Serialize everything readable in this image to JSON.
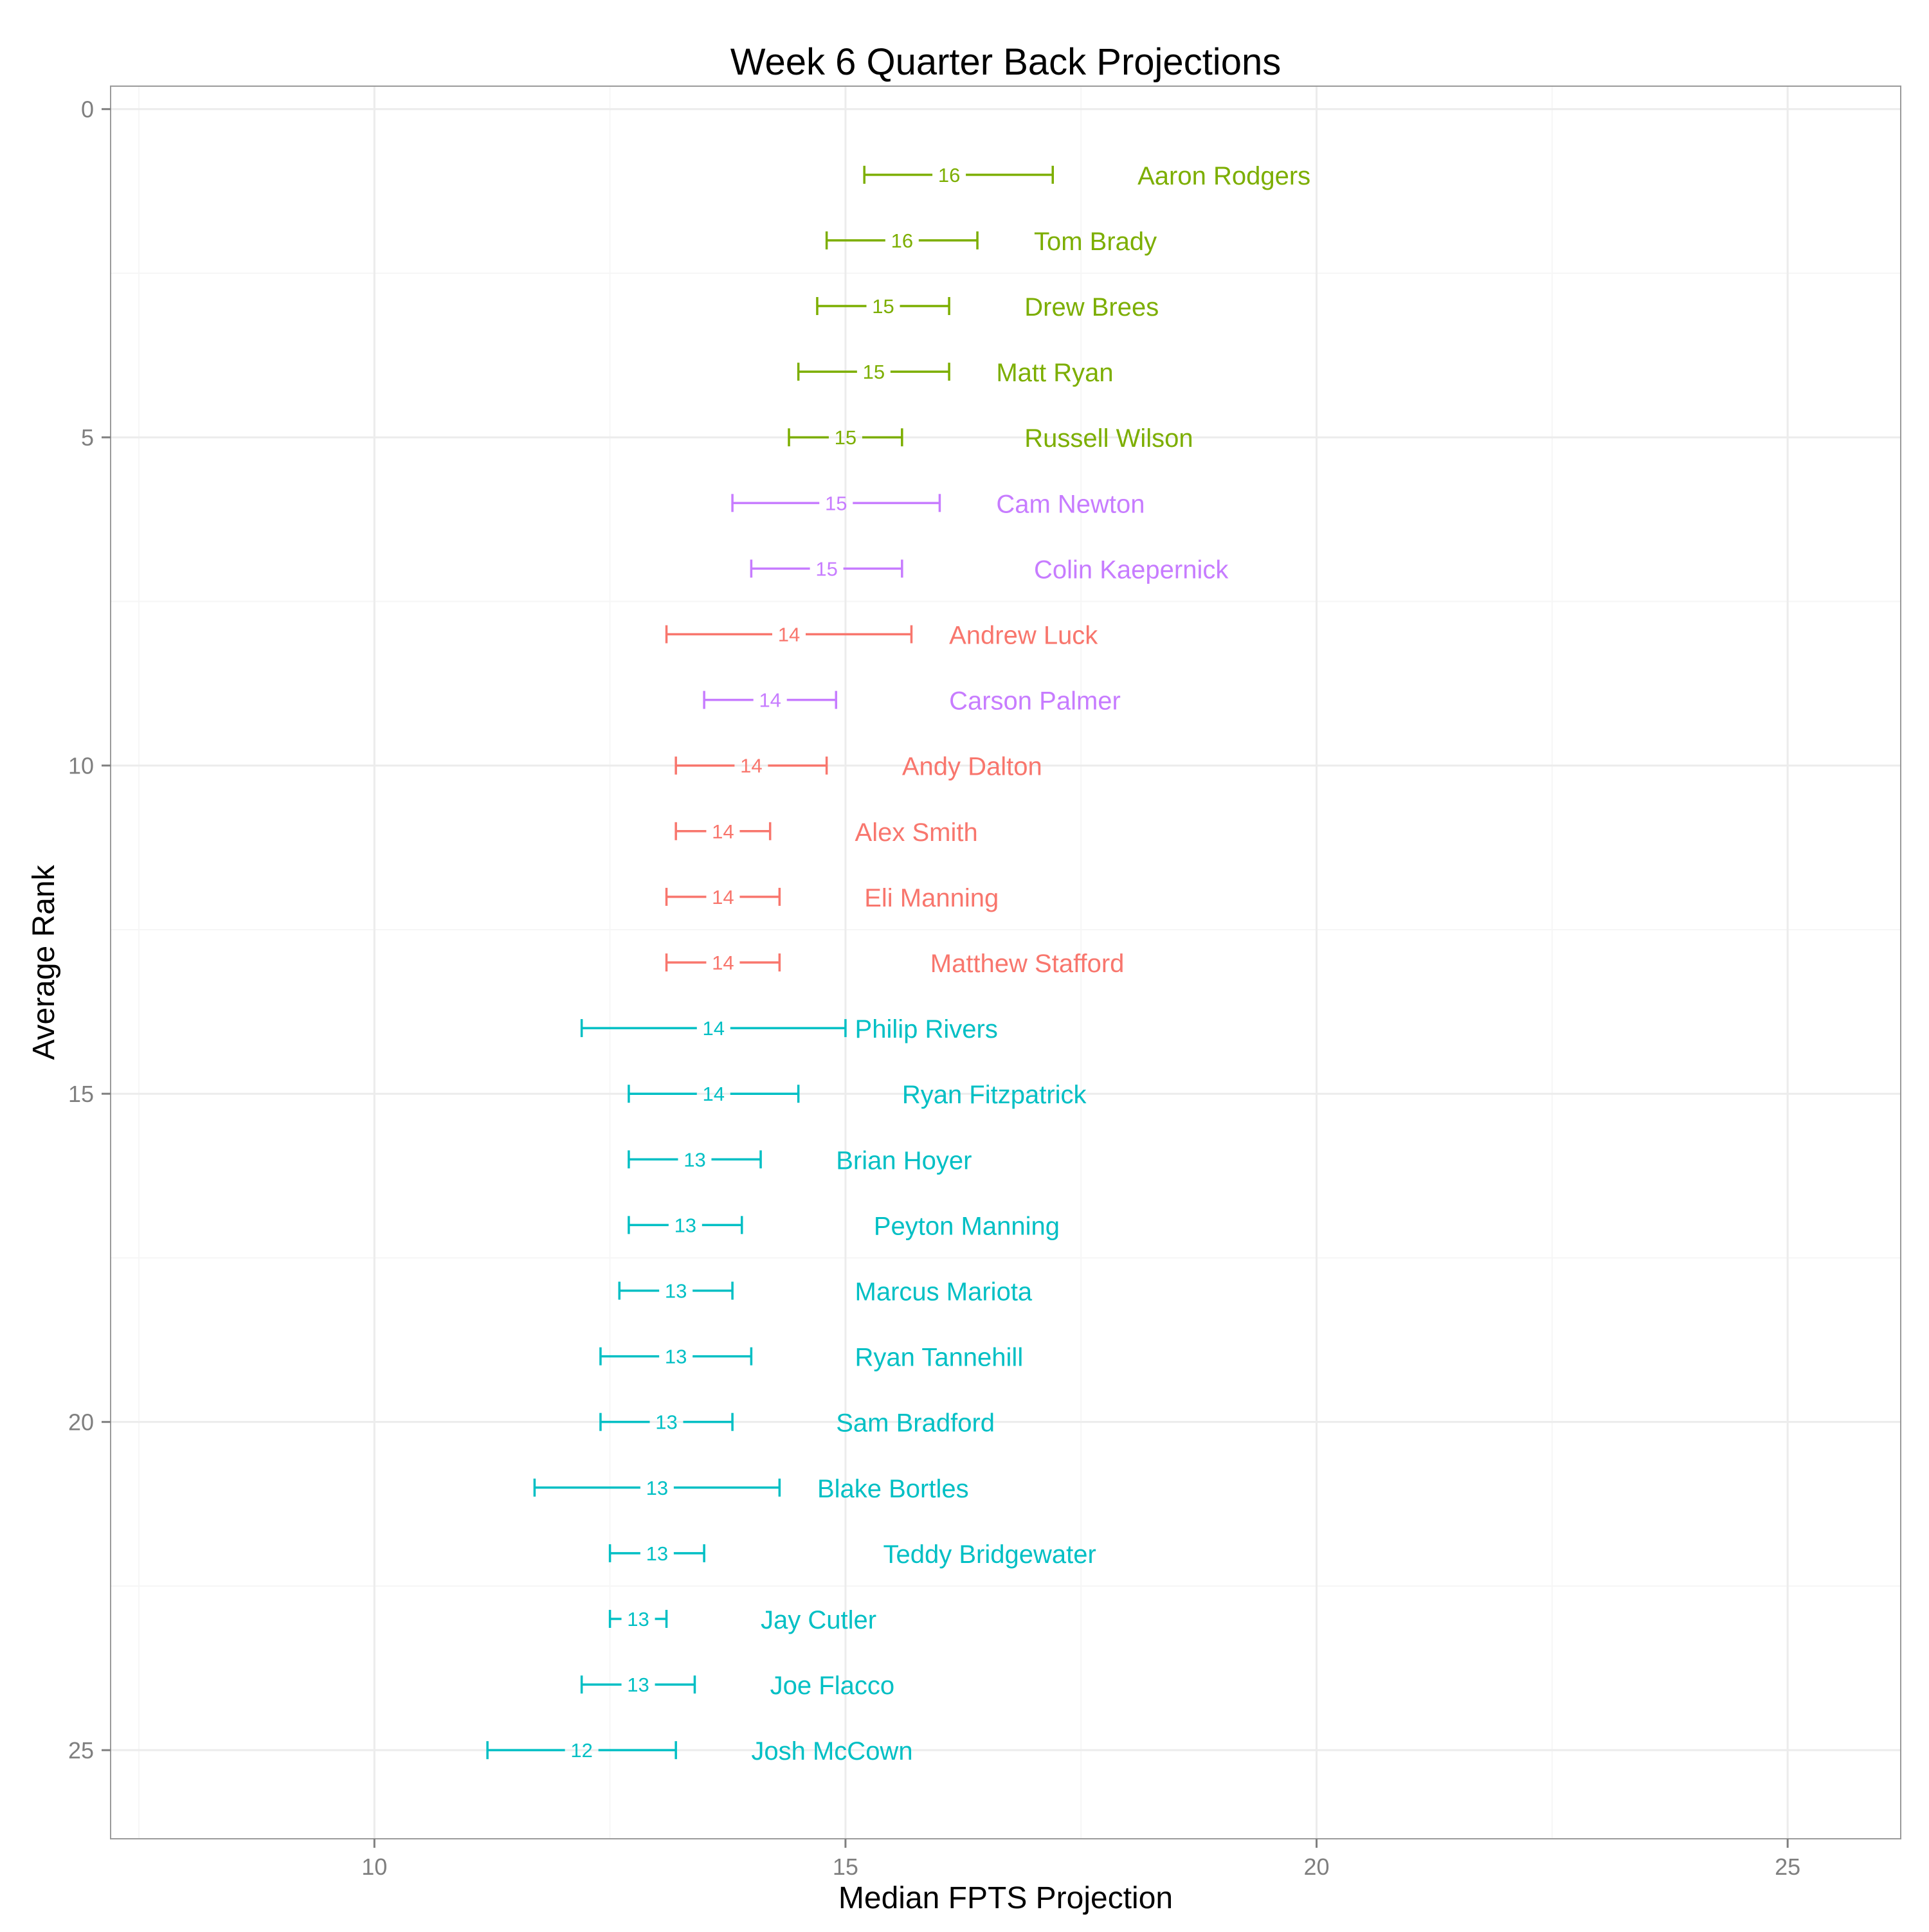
{
  "chart_data": {
    "type": "errorbar",
    "title": "Week 6 Quarter Back Projections",
    "xlabel": "Median FPTS Projection",
    "ylabel": "Average Rank",
    "xlim": [
      7.2,
      26.2
    ],
    "ylim": [
      26.35,
      -0.35
    ],
    "y_reversed": true,
    "x_ticks": [
      10,
      15,
      20,
      25
    ],
    "y_ticks": [
      0,
      5,
      10,
      15,
      20,
      25
    ],
    "grid": true,
    "colors": {
      "tier_green": "#7CAE00",
      "tier_purple": "#C77CFF",
      "tier_red": "#F8766D",
      "tier_teal": "#00BFC4"
    },
    "players": [
      {
        "name": "Aaron Rodgers",
        "rank": 1,
        "low": 15.2,
        "high": 17.2,
        "median_label": "16",
        "median": 16.1,
        "color": "#7CAE00",
        "name_x": 18.1
      },
      {
        "name": "Tom Brady",
        "rank": 2,
        "low": 14.8,
        "high": 16.4,
        "median_label": "16",
        "median": 15.6,
        "color": "#7CAE00",
        "name_x": 17.0
      },
      {
        "name": "Drew Brees",
        "rank": 3,
        "low": 14.7,
        "high": 16.1,
        "median_label": "15",
        "median": 15.4,
        "color": "#7CAE00",
        "name_x": 16.9
      },
      {
        "name": "Matt Ryan",
        "rank": 4,
        "low": 14.5,
        "high": 16.1,
        "median_label": "15",
        "median": 15.3,
        "color": "#7CAE00",
        "name_x": 16.6
      },
      {
        "name": "Russell Wilson",
        "rank": 5,
        "low": 14.4,
        "high": 15.6,
        "median_label": "15",
        "median": 15.0,
        "color": "#7CAE00",
        "name_x": 16.9
      },
      {
        "name": "Cam Newton",
        "rank": 6,
        "low": 13.8,
        "high": 16.0,
        "median_label": "15",
        "median": 14.9,
        "color": "#C77CFF",
        "name_x": 16.6
      },
      {
        "name": "Colin Kaepernick",
        "rank": 7,
        "low": 14.0,
        "high": 15.6,
        "median_label": "15",
        "median": 14.8,
        "color": "#C77CFF",
        "name_x": 17.0
      },
      {
        "name": "Andrew Luck",
        "rank": 8,
        "low": 13.1,
        "high": 15.7,
        "median_label": "14",
        "median": 14.4,
        "color": "#F8766D",
        "name_x": 16.1
      },
      {
        "name": "Carson Palmer",
        "rank": 9,
        "low": 13.5,
        "high": 14.9,
        "median_label": "14",
        "median": 14.2,
        "color": "#C77CFF",
        "name_x": 16.1
      },
      {
        "name": "Andy Dalton",
        "rank": 10,
        "low": 13.2,
        "high": 14.8,
        "median_label": "14",
        "median": 14.0,
        "color": "#F8766D",
        "name_x": 15.6
      },
      {
        "name": "Alex Smith",
        "rank": 11,
        "low": 13.2,
        "high": 14.2,
        "median_label": "14",
        "median": 13.7,
        "color": "#F8766D",
        "name_x": 15.1
      },
      {
        "name": "Eli Manning",
        "rank": 12,
        "low": 13.1,
        "high": 14.3,
        "median_label": "14",
        "median": 13.7,
        "color": "#F8766D",
        "name_x": 15.2
      },
      {
        "name": "Matthew Stafford",
        "rank": 13,
        "low": 13.1,
        "high": 14.3,
        "median_label": "14",
        "median": 13.7,
        "color": "#F8766D",
        "name_x": 15.9
      },
      {
        "name": "Philip Rivers",
        "rank": 14,
        "low": 12.2,
        "high": 15.0,
        "median_label": "14",
        "median": 13.6,
        "color": "#00BFC4",
        "name_x": 15.1
      },
      {
        "name": "Ryan Fitzpatrick",
        "rank": 15,
        "low": 12.7,
        "high": 14.5,
        "median_label": "14",
        "median": 13.6,
        "color": "#00BFC4",
        "name_x": 15.6
      },
      {
        "name": "Brian Hoyer",
        "rank": 16,
        "low": 12.7,
        "high": 14.1,
        "median_label": "13",
        "median": 13.4,
        "color": "#00BFC4",
        "name_x": 14.9
      },
      {
        "name": "Peyton Manning",
        "rank": 17,
        "low": 12.7,
        "high": 13.9,
        "median_label": "13",
        "median": 13.3,
        "color": "#00BFC4",
        "name_x": 15.3
      },
      {
        "name": "Marcus Mariota",
        "rank": 18,
        "low": 12.6,
        "high": 13.8,
        "median_label": "13",
        "median": 13.2,
        "color": "#00BFC4",
        "name_x": 15.1
      },
      {
        "name": "Ryan Tannehill",
        "rank": 19,
        "low": 12.4,
        "high": 14.0,
        "median_label": "13",
        "median": 13.2,
        "color": "#00BFC4",
        "name_x": 15.1
      },
      {
        "name": "Sam Bradford",
        "rank": 20,
        "low": 12.4,
        "high": 13.8,
        "median_label": "13",
        "median": 13.1,
        "color": "#00BFC4",
        "name_x": 14.9
      },
      {
        "name": "Blake Bortles",
        "rank": 21,
        "low": 11.7,
        "high": 14.3,
        "median_label": "13",
        "median": 13.0,
        "color": "#00BFC4",
        "name_x": 14.7
      },
      {
        "name": "Teddy Bridgewater",
        "rank": 22,
        "low": 12.5,
        "high": 13.5,
        "median_label": "13",
        "median": 13.0,
        "color": "#00BFC4",
        "name_x": 15.4
      },
      {
        "name": "Jay Cutler",
        "rank": 23,
        "low": 12.5,
        "high": 13.1,
        "median_label": "13",
        "median": 12.8,
        "color": "#00BFC4",
        "name_x": 14.1
      },
      {
        "name": "Joe Flacco",
        "rank": 24,
        "low": 12.2,
        "high": 13.4,
        "median_label": "13",
        "median": 12.8,
        "color": "#00BFC4",
        "name_x": 14.2
      },
      {
        "name": "Josh McCown",
        "rank": 25,
        "low": 11.2,
        "high": 13.2,
        "median_label": "12",
        "median": 12.2,
        "color": "#00BFC4",
        "name_x": 14.0
      }
    ]
  }
}
